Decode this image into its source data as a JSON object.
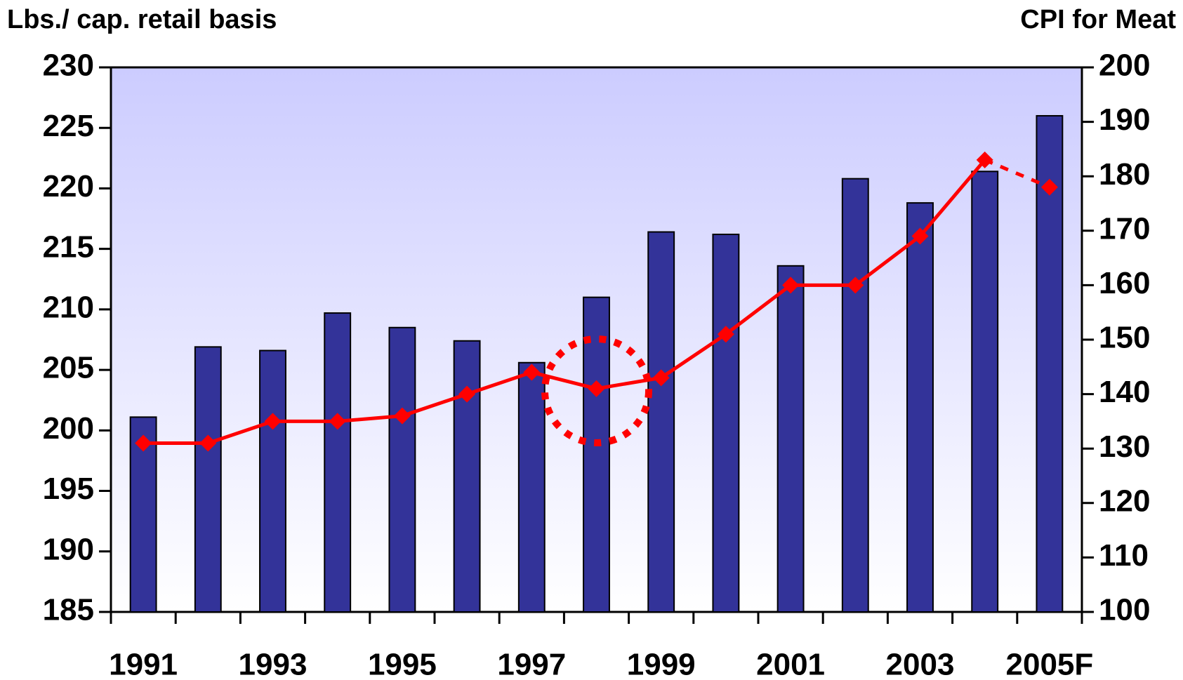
{
  "chart_data": {
    "type": "bar_line",
    "left_axis_title": "Lbs./ cap. retail basis",
    "right_axis_title": "CPI for Meat",
    "categories": [
      "1991",
      null,
      "1993",
      null,
      "1995",
      null,
      "1997",
      null,
      "1999",
      null,
      "2001",
      null,
      "2003",
      null,
      "2005F"
    ],
    "series": [
      {
        "name": "Lbs./ cap. retail basis",
        "type": "bar",
        "color": "#333399",
        "axis": "y",
        "values": [
          201.1,
          206.9,
          206.6,
          209.7,
          208.5,
          207.4,
          205.6,
          211.0,
          216.4,
          216.2,
          213.6,
          220.8,
          218.8,
          221.4,
          226.0
        ]
      },
      {
        "name": "CPI for Meat",
        "type": "line",
        "color": "#ff0000",
        "axis": "y2",
        "dashed_last_segment": true,
        "values": [
          131,
          131,
          135,
          135,
          136,
          140,
          144,
          141,
          143,
          151,
          160,
          160,
          169,
          183,
          178
        ]
      }
    ],
    "ylim": [
      185,
      230
    ],
    "yticks": [
      185,
      190,
      195,
      200,
      205,
      210,
      215,
      220,
      225,
      230
    ],
    "y2lim": [
      100,
      200
    ],
    "y2ticks": [
      100,
      110,
      120,
      130,
      140,
      150,
      160,
      170,
      180,
      190,
      200
    ],
    "grid": false
  }
}
